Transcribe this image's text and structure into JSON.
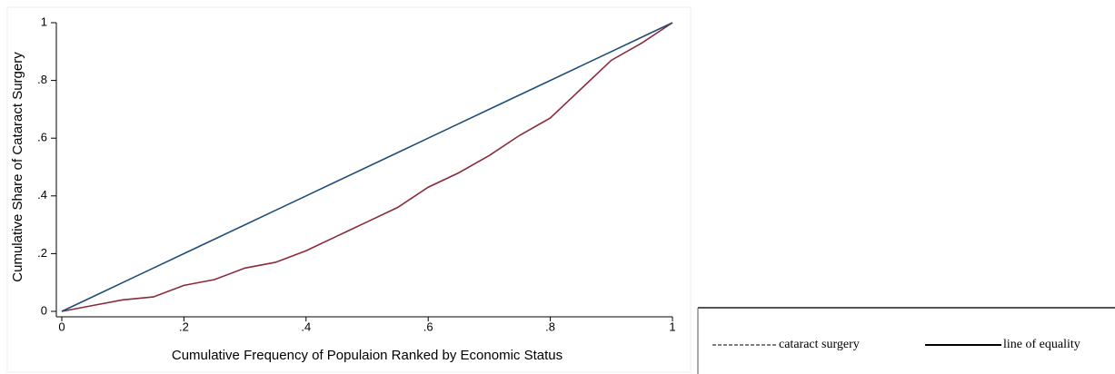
{
  "chart_data": {
    "type": "line",
    "x_label": "Cumulative Frequency of Populaion Ranked by Economic Status",
    "y_label": "Cumulative Share of Cataract Surgery",
    "x": [
      0,
      0.05,
      0.1,
      0.15,
      0.2,
      0.25,
      0.3,
      0.35,
      0.4,
      0.45,
      0.5,
      0.55,
      0.6,
      0.65,
      0.7,
      0.75,
      0.8,
      0.85,
      0.9,
      0.95,
      1
    ],
    "series": [
      {
        "name": "cataract surgery",
        "color": "#8b2a3a",
        "values": [
          0,
          0.02,
          0.04,
          0.05,
          0.09,
          0.11,
          0.15,
          0.17,
          0.21,
          0.26,
          0.31,
          0.36,
          0.43,
          0.48,
          0.54,
          0.61,
          0.67,
          0.77,
          0.87,
          0.93,
          1
        ]
      },
      {
        "name": "line of equality",
        "color": "#1f4e79",
        "values": [
          0,
          0.05,
          0.1,
          0.15,
          0.2,
          0.25,
          0.3,
          0.35,
          0.4,
          0.45,
          0.5,
          0.55,
          0.6,
          0.65,
          0.7,
          0.75,
          0.8,
          0.85,
          0.9,
          0.95,
          1
        ]
      }
    ],
    "xlim": [
      0,
      1
    ],
    "ylim": [
      0,
      1
    ],
    "xticks": [
      0,
      {
        "value": 0.2,
        "label": ".2"
      },
      {
        "value": 0.4,
        "label": ".4"
      },
      {
        "value": 0.6,
        "label": ".6"
      },
      {
        "value": 0.8,
        "label": ".8"
      },
      1
    ],
    "yticks": [
      0,
      {
        "value": 0.2,
        "label": ".2"
      },
      {
        "value": 0.4,
        "label": ".4"
      },
      {
        "value": 0.6,
        "label": ".6"
      },
      {
        "value": 0.8,
        "label": ".8"
      },
      1
    ]
  }
}
